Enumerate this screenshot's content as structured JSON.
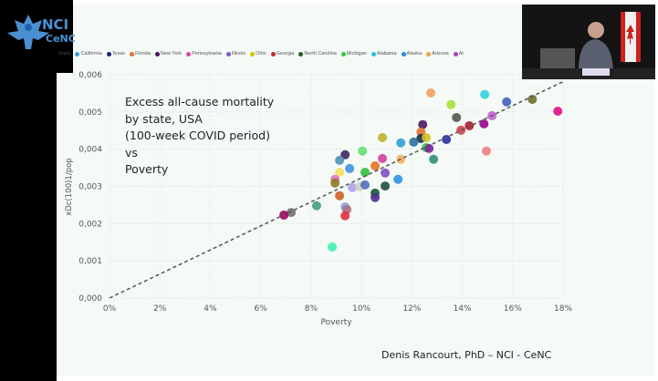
{
  "logo": {
    "line1": "NCI",
    "line2": "CeNC"
  },
  "legend": {
    "title": "State",
    "items": [
      {
        "label": "California",
        "color": "#3aa0e0"
      },
      {
        "label": "Texas",
        "color": "#1a237e"
      },
      {
        "label": "Florida",
        "color": "#e8702a"
      },
      {
        "label": "New York",
        "color": "#4a0e5e"
      },
      {
        "label": "Pennsylvania",
        "color": "#e040a0"
      },
      {
        "label": "Illinois",
        "color": "#7e57c2"
      },
      {
        "label": "Ohio",
        "color": "#d4c200"
      },
      {
        "label": "Georgia",
        "color": "#c62828"
      },
      {
        "label": "North Carolina",
        "color": "#1b5e20"
      },
      {
        "label": "Michigan",
        "color": "#2ecc40"
      },
      {
        "label": "Alabama",
        "color": "#26c6da"
      },
      {
        "label": "Alaska",
        "color": "#1e88e5"
      },
      {
        "label": "Arizona",
        "color": "#f0a040"
      },
      {
        "label": "Ar",
        "color": "#b040c0"
      }
    ]
  },
  "annotation": [
    "Excess all-cause mortality",
    "by state, USA",
    "(100-week COVID period)",
    "vs",
    "Poverty"
  ],
  "credit": "Denis Rancourt, PhD  –  NCI - CeNC",
  "chart_data": {
    "type": "scatter",
    "xlabel": "Poverty",
    "ylabel": "xDc(100)1/pop",
    "xlim": [
      0,
      18
    ],
    "ylim": [
      0,
      0.006
    ],
    "x_ticks": [
      "0%",
      "2%",
      "4%",
      "6%",
      "8%",
      "10%",
      "12%",
      "14%",
      "16%",
      "18%"
    ],
    "y_ticks": [
      "0,000",
      "0,001",
      "0,002",
      "0,003",
      "0,004",
      "0,005",
      "0,006"
    ],
    "grid": true,
    "legend_position": "top",
    "trendline": {
      "style": "dashed",
      "slope": 0.000323,
      "intercept": 0,
      "x_range": [
        0,
        18
      ]
    },
    "points": [
      {
        "x": 12.75,
        "y": 0.00551,
        "color": "#f0a060"
      },
      {
        "x": 14.89,
        "y": 0.00547,
        "color": "#30d0e0"
      },
      {
        "x": 13.55,
        "y": 0.0052,
        "color": "#a8e030"
      },
      {
        "x": 15.76,
        "y": 0.00527,
        "color": "#4060c0"
      },
      {
        "x": 16.78,
        "y": 0.00534,
        "color": "#707030"
      },
      {
        "x": 17.79,
        "y": 0.00502,
        "color": "#e0108a"
      },
      {
        "x": 13.77,
        "y": 0.00485,
        "color": "#505850"
      },
      {
        "x": 15.18,
        "y": 0.0049,
        "color": "#c060d0"
      },
      {
        "x": 14.86,
        "y": 0.00468,
        "color": "#a00090"
      },
      {
        "x": 14.28,
        "y": 0.00463,
        "color": "#b01830"
      },
      {
        "x": 13.95,
        "y": 0.00451,
        "color": "#d04050"
      },
      {
        "x": 12.43,
        "y": 0.00466,
        "color": "#4a1860"
      },
      {
        "x": 12.36,
        "y": 0.00446,
        "color": "#e07030"
      },
      {
        "x": 12.36,
        "y": 0.00429,
        "color": "#103050"
      },
      {
        "x": 12.57,
        "y": 0.00431,
        "color": "#d8c020"
      },
      {
        "x": 13.37,
        "y": 0.00426,
        "color": "#2a30a0"
      },
      {
        "x": 12.07,
        "y": 0.00419,
        "color": "#2a70a0"
      },
      {
        "x": 11.56,
        "y": 0.00417,
        "color": "#30a0d0"
      },
      {
        "x": 10.83,
        "y": 0.00431,
        "color": "#c0b020"
      },
      {
        "x": 12.57,
        "y": 0.00404,
        "color": "#30c040"
      },
      {
        "x": 12.68,
        "y": 0.00402,
        "color": "#8020a0"
      },
      {
        "x": 12.86,
        "y": 0.00373,
        "color": "#30907a"
      },
      {
        "x": 14.96,
        "y": 0.00395,
        "color": "#f08080"
      },
      {
        "x": 10.04,
        "y": 0.00395,
        "color": "#60e070"
      },
      {
        "x": 9.35,
        "y": 0.00385,
        "color": "#402860"
      },
      {
        "x": 9.13,
        "y": 0.0037,
        "color": "#5090c0"
      },
      {
        "x": 10.83,
        "y": 0.00375,
        "color": "#d040a0"
      },
      {
        "x": 10.54,
        "y": 0.00355,
        "color": "#e87020"
      },
      {
        "x": 11.56,
        "y": 0.00373,
        "color": "#f0b060"
      },
      {
        "x": 9.53,
        "y": 0.00348,
        "color": "#4090e0"
      },
      {
        "x": 9.13,
        "y": 0.00338,
        "color": "#f0e060"
      },
      {
        "x": 10.14,
        "y": 0.00338,
        "color": "#30c040"
      },
      {
        "x": 10.94,
        "y": 0.00336,
        "color": "#8050c0"
      },
      {
        "x": 8.95,
        "y": 0.00319,
        "color": "#e070c0"
      },
      {
        "x": 8.95,
        "y": 0.00309,
        "color": "#908020"
      },
      {
        "x": 11.45,
        "y": 0.00319,
        "color": "#3090e0"
      },
      {
        "x": 9.64,
        "y": 0.00297,
        "color": "#b0a0f0"
      },
      {
        "x": 9.93,
        "y": 0.00299,
        "color": "#d0d0c0"
      },
      {
        "x": 10.14,
        "y": 0.00304,
        "color": "#5070c0"
      },
      {
        "x": 10.94,
        "y": 0.00301,
        "color": "#205040"
      },
      {
        "x": 10.54,
        "y": 0.00282,
        "color": "#106030"
      },
      {
        "x": 10.54,
        "y": 0.0027,
        "color": "#503090"
      },
      {
        "x": 9.13,
        "y": 0.00275,
        "color": "#d06020"
      },
      {
        "x": 8.22,
        "y": 0.00248,
        "color": "#40a080"
      },
      {
        "x": 9.35,
        "y": 0.00245,
        "color": "#90a0e0"
      },
      {
        "x": 9.42,
        "y": 0.00238,
        "color": "#b07080"
      },
      {
        "x": 9.35,
        "y": 0.00221,
        "color": "#e03040"
      },
      {
        "x": 7.21,
        "y": 0.0023,
        "color": "#707070"
      },
      {
        "x": 6.92,
        "y": 0.00223,
        "color": "#a00060"
      },
      {
        "x": 8.84,
        "y": 0.00137,
        "color": "#40f0b0"
      }
    ]
  }
}
